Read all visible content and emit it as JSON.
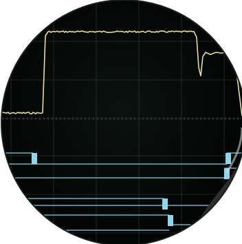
{
  "photo": {
    "subject": "oscilloscope-screen-magnified",
    "colors": {
      "background": "#ffffff",
      "screen": "#050807",
      "grid": "#36443f",
      "trace_primary": "#e6df9a",
      "trace_logic": "#7fd3e6",
      "logic_fill": "#8fd8ea",
      "lens_edge": "#2a3230",
      "hand": "#2c2d2f"
    },
    "icons": [
      "lens-icon"
    ]
  }
}
